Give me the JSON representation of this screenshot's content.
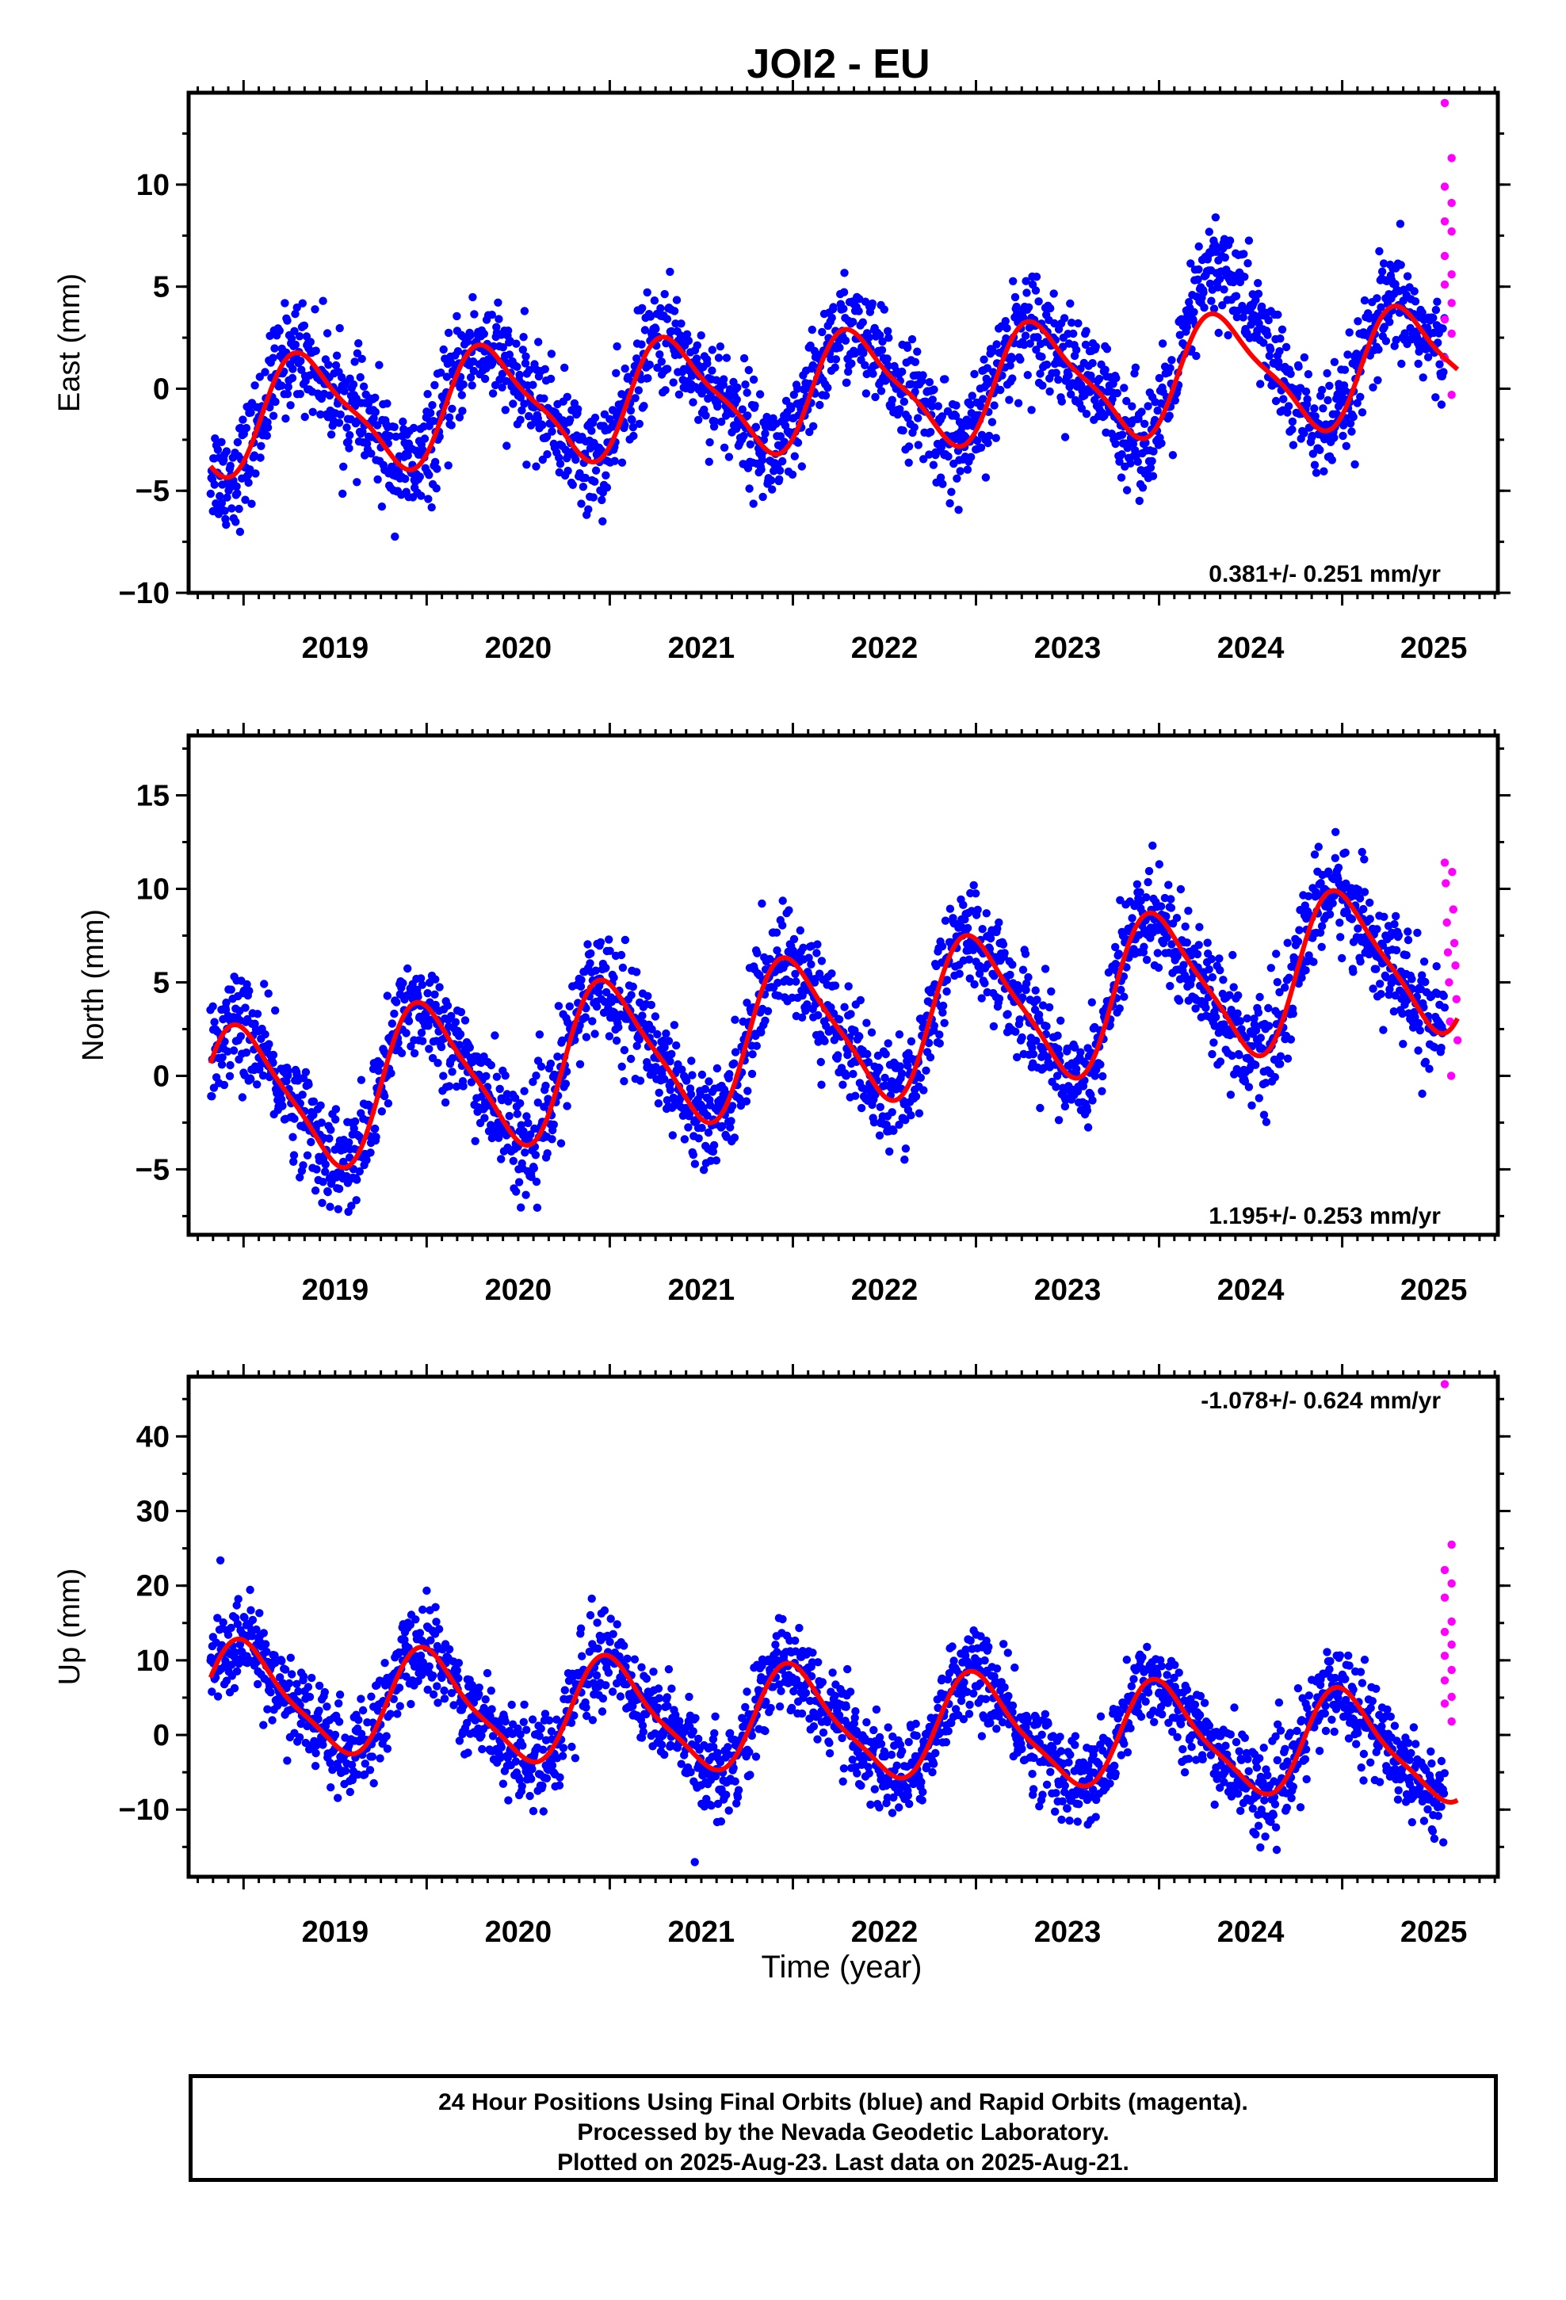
{
  "title": "JOI2 - EU",
  "xlabel": "Time (year)",
  "footer": {
    "line1": "24 Hour Positions Using Final Orbits (blue) and Rapid Orbits (magenta).",
    "line2": "Processed by the Nevada Geodetic Laboratory.",
    "line3": "Plotted on 2025-Aug-23. Last data on 2025-Aug-21."
  },
  "colors": {
    "final": "#0000ff",
    "rapid": "#ff00ff",
    "model": "#ff0000"
  },
  "chart_data": [
    {
      "type": "scatter",
      "ylabel": "East (mm)",
      "rate_label": "0.381+/- 0.251 mm/yr",
      "rate_position": "bottom-right",
      "xlim": [
        2018.7,
        2025.85
      ],
      "ylim": [
        -10,
        14.5
      ],
      "yticks": [
        -10,
        -5,
        0,
        5,
        10
      ],
      "xticks": [
        2019,
        2020,
        2021,
        2022,
        2023,
        2024,
        2025
      ],
      "x_start": 2018.82,
      "x_end": 2025.63,
      "model": {
        "rate": 0.381,
        "offset": -1.4,
        "annual_amp": 2.7,
        "annual_phase": 0.1,
        "semi_amp": 0.7,
        "semi_phase": 0.6
      },
      "scatter_sd": 1.3,
      "anomaly": {
        "x0": 2024.1,
        "x1": 2024.7,
        "shift": 2.5
      },
      "rapid_x": [
        2025.56,
        2025.63
      ],
      "rapid_values": [
        14,
        11.3,
        9.9,
        9.1,
        8.2,
        7.7,
        6.5,
        5.6,
        5.1,
        4.2,
        3.4,
        2.7,
        1.5,
        -0.3
      ]
    },
    {
      "type": "scatter",
      "ylabel": "North (mm)",
      "rate_label": "1.195+/- 0.253 mm/yr",
      "rate_position": "bottom-right",
      "xlim": [
        2018.7,
        2025.85
      ],
      "ylim": [
        -8.5,
        18.2
      ],
      "yticks": [
        -5,
        0,
        5,
        10,
        15
      ],
      "xticks": [
        2019,
        2020,
        2021,
        2022,
        2023,
        2024,
        2025
      ],
      "x_start": 2018.82,
      "x_end": 2025.63,
      "model": {
        "rate": 1.195,
        "offset": -1.6,
        "annual_amp": 3.9,
        "annual_phase": 0.75,
        "semi_amp": 0.8,
        "semi_phase": 0.25
      },
      "scatter_sd": 1.4,
      "rapid_x": [
        2025.56,
        2025.63
      ],
      "rapid_values": [
        11.4,
        10.9,
        10.3,
        8.9,
        8.2,
        7.1,
        6.6,
        5.9,
        5.0,
        4.1,
        2.9,
        1.9,
        0.0
      ]
    },
    {
      "type": "scatter",
      "ylabel": "Up (mm)",
      "rate_label": "-1.078+/- 0.624 mm/yr",
      "rate_position": "top-right",
      "xlim": [
        2018.7,
        2025.85
      ],
      "ylim": [
        -19,
        48
      ],
      "yticks": [
        -10,
        0,
        10,
        20,
        30,
        40
      ],
      "xticks": [
        2019,
        2020,
        2021,
        2022,
        2023,
        2024,
        2025
      ],
      "x_start": 2018.82,
      "x_end": 2025.63,
      "model": {
        "rate": -1.078,
        "offset": 5.2,
        "annual_amp": 6.8,
        "annual_phase": 0.77,
        "semi_amp": 1.6,
        "semi_phase": 0.3
      },
      "scatter_sd": 3.0,
      "rapid_x": [
        2025.56,
        2025.63
      ],
      "rapid_values": [
        47,
        25.5,
        22.1,
        20.3,
        18.4,
        15.2,
        13.8,
        12.1,
        10.6,
        8.7,
        7.3,
        5.1,
        4.2,
        1.8
      ]
    }
  ]
}
